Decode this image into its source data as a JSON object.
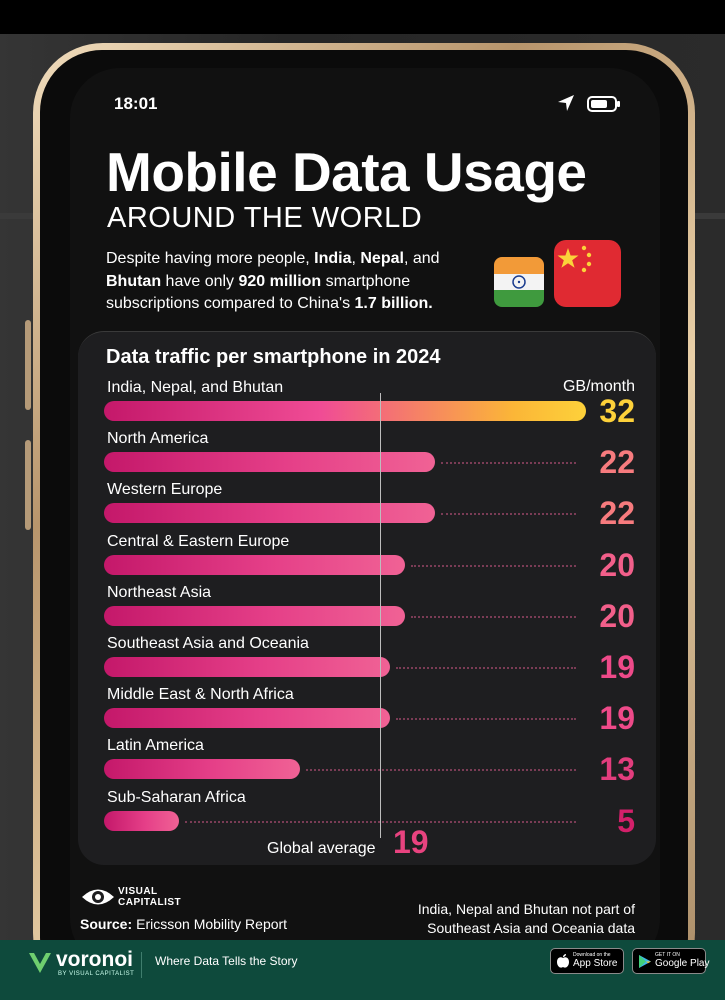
{
  "status": {
    "time": "18:01"
  },
  "header": {
    "title": "Mobile Data Usage",
    "subtitle": "AROUND THE WORLD",
    "intro_parts": [
      {
        "text": "Despite having more people, ",
        "bold": false
      },
      {
        "text": "India",
        "bold": true
      },
      {
        "text": ", ",
        "bold": false
      },
      {
        "text": "Nepal",
        "bold": true
      },
      {
        "text": ", and ",
        "bold": false
      },
      {
        "text": "Bhutan",
        "bold": true
      },
      {
        "text": " have only ",
        "bold": false
      },
      {
        "text": "920 million",
        "bold": true
      },
      {
        "text": " smartphone subscriptions compared to China's ",
        "bold": false
      },
      {
        "text": "1.7 billion.",
        "bold": true
      }
    ]
  },
  "chart_data": {
    "type": "bar",
    "title": "Data traffic per smartphone in 2024",
    "unit": "GB/month",
    "categories": [
      "India, Nepal, and Bhutan",
      "North America",
      "Western Europe",
      "Central & Eastern Europe",
      "Northeast Asia",
      "Southeast Asia and Oceania",
      "Middle East & North Africa",
      "Latin America",
      "Sub-Saharan Africa"
    ],
    "values": [
      32,
      22,
      22,
      20,
      20,
      19,
      19,
      13,
      5
    ],
    "value_colors": [
      "#fdd13a",
      "#f77b7e",
      "#f77b7e",
      "#f25f8a",
      "#f25f8a",
      "#ee4a89",
      "#ee4a89",
      "#e23d7d",
      "#d3206a"
    ],
    "reference_line": {
      "label": "Global average",
      "value": 19
    },
    "xlim": [
      0,
      32
    ],
    "orientation": "horizontal",
    "grid": false
  },
  "footer": {
    "brand_line1": "VISUAL",
    "brand_line2": "CAPITALIST",
    "source_label": "Source:",
    "source_text": "Ericsson Mobility Report",
    "note_line1": "India, Nepal and Bhutan not part of",
    "note_line2": "Southeast Asia and Oceania data"
  },
  "bottom_bar": {
    "brand": "voronoi",
    "brand_sub": "BY VISUAL CAPITALIST",
    "tagline": "Where Data Tells the Story",
    "app_store_small": "Download on the",
    "app_store_big": "App Store",
    "google_small": "GET IT ON",
    "google_big": "Google Play"
  }
}
